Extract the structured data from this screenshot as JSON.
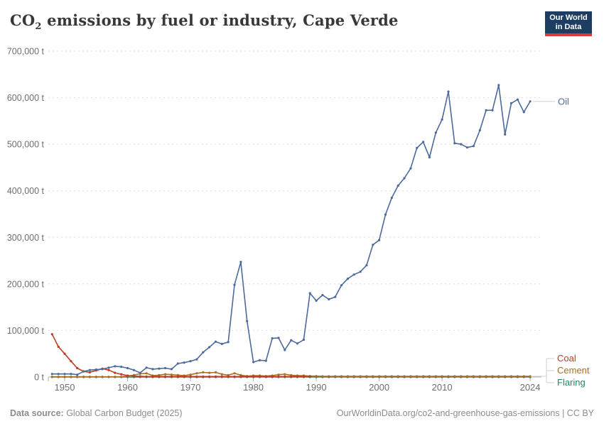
{
  "header": {
    "title_co": "CO",
    "title_sub": "2",
    "title_rest": " emissions by fuel or industry, Cape Verde",
    "logo": {
      "line1": "Our World",
      "line2": "in Data"
    }
  },
  "footer": {
    "source_label": "Data source:",
    "source_value": " Global Carbon Budget (2025)",
    "attribution": "OurWorldinData.org/co2-and-greenhouse-gas-emissions | CC BY"
  },
  "colors": {
    "oil": "#4C6A9C",
    "coal": "#BC3D22",
    "cement": "#AC6E24",
    "flaring": "#2C8465",
    "grid": "#dedede",
    "axis": "#b3b3b3",
    "tick_text": "#6e6e6e",
    "connector": "#cfcfcf",
    "logo_bg": "#1d3d63",
    "logo_accent": "#d93a34"
  },
  "chart_data": {
    "type": "line",
    "title": "CO₂ emissions by fuel or industry, Cape Verde",
    "unit": "t",
    "xlabel": "",
    "ylabel": "",
    "ylim": [
      0,
      700000
    ],
    "xlim": [
      1948,
      2024
    ],
    "grid": "horizontal-dashed",
    "legend_position": "right-edge-line-labels",
    "x_ticks": [
      1950,
      1960,
      1970,
      1980,
      1990,
      2000,
      2010,
      2024
    ],
    "y_ticks": [
      {
        "value": 0,
        "label": "0 t"
      },
      {
        "value": 100000,
        "label": "100,000 t"
      },
      {
        "value": 200000,
        "label": "200,000 t"
      },
      {
        "value": 300000,
        "label": "300,000 t"
      },
      {
        "value": 400000,
        "label": "400,000 t"
      },
      {
        "value": 500000,
        "label": "500,000 t"
      },
      {
        "value": 600000,
        "label": "600,000 t"
      },
      {
        "value": 700000,
        "label": "700,000 t"
      }
    ],
    "x": [
      1948,
      1949,
      1950,
      1951,
      1952,
      1953,
      1954,
      1955,
      1956,
      1957,
      1958,
      1959,
      1960,
      1961,
      1962,
      1963,
      1964,
      1965,
      1966,
      1967,
      1968,
      1969,
      1970,
      1971,
      1972,
      1973,
      1974,
      1975,
      1976,
      1977,
      1978,
      1979,
      1980,
      1981,
      1982,
      1983,
      1984,
      1985,
      1986,
      1987,
      1988,
      1989,
      1990,
      1991,
      1992,
      1993,
      1994,
      1995,
      1996,
      1997,
      1998,
      1999,
      2000,
      2001,
      2002,
      2003,
      2004,
      2005,
      2006,
      2007,
      2008,
      2009,
      2010,
      2011,
      2012,
      2013,
      2014,
      2015,
      2016,
      2017,
      2018,
      2019,
      2020,
      2021,
      2022,
      2023,
      2024
    ],
    "series": [
      {
        "name": "Oil",
        "color": "#4C6A9C",
        "values": [
          6500,
          6500,
          6500,
          6500,
          5000,
          12000,
          15000,
          16000,
          17000,
          20000,
          23000,
          22000,
          19000,
          15000,
          9000,
          20000,
          17000,
          18000,
          19000,
          17000,
          29000,
          31000,
          34000,
          38000,
          53000,
          64000,
          76000,
          71000,
          75000,
          198000,
          247000,
          120000,
          32000,
          36000,
          35000,
          83000,
          84000,
          58000,
          79000,
          72000,
          80000,
          180000,
          164000,
          176000,
          167000,
          172000,
          197000,
          211000,
          220000,
          226000,
          240000,
          284000,
          294000,
          349000,
          385000,
          411000,
          427000,
          448000,
          492000,
          505000,
          472000,
          525000,
          553000,
          613000,
          502000,
          500000,
          493000,
          496000,
          530000,
          573000,
          573000,
          627000,
          521000,
          588000,
          596000,
          569000,
          592000
        ]
      },
      {
        "name": "Coal",
        "color": "#BC3D22",
        "values": [
          92000,
          65000,
          50000,
          34000,
          19000,
          12000,
          10000,
          14000,
          18000,
          15000,
          9000,
          6000,
          3000,
          2000,
          1500,
          1000,
          1000,
          1000,
          1000,
          1000,
          1000,
          1000,
          1000,
          1000,
          1000,
          1000,
          1000,
          1000,
          1000,
          1000,
          1000,
          1000,
          1000,
          1000,
          1000,
          1000,
          1000,
          1000,
          1000,
          1000,
          1000,
          1000,
          null,
          null,
          null,
          null,
          null,
          null,
          null,
          null,
          null,
          null,
          null,
          null,
          null,
          null,
          null,
          null,
          null,
          null,
          null,
          null,
          null,
          null,
          null,
          null,
          null,
          null,
          null,
          null,
          null,
          null,
          null,
          null,
          null,
          null,
          null
        ]
      },
      {
        "name": "Cement",
        "color": "#AC6E24",
        "values": [
          500,
          500,
          500,
          500,
          500,
          500,
          500,
          500,
          500,
          500,
          500,
          500,
          2000,
          4000,
          7000,
          8000,
          3000,
          4000,
          6000,
          5000,
          4000,
          3000,
          5000,
          8000,
          10000,
          9000,
          10000,
          6000,
          4000,
          8000,
          4000,
          2000,
          3000,
          3000,
          2000,
          3000,
          5000,
          6000,
          4000,
          3000,
          3000,
          2000,
          2000,
          1500,
          1500,
          1500,
          1500,
          1500,
          1500,
          1500,
          1500,
          1500,
          1500,
          1500,
          1500,
          1500,
          1500,
          1500,
          1500,
          1500,
          1500,
          1500,
          1500,
          1500,
          1500,
          1500,
          1500,
          1500,
          1500,
          1500,
          1500,
          1500,
          1500,
          1500,
          1500,
          1500,
          1500
        ]
      },
      {
        "name": "Flaring",
        "color": "#2C8465",
        "values": [
          0,
          0,
          0,
          0,
          0,
          0,
          0,
          0,
          0,
          0,
          0,
          0,
          0,
          0,
          0,
          0,
          0,
          0,
          0,
          0,
          0,
          0,
          0,
          0,
          0,
          0,
          0,
          0,
          0,
          0,
          0,
          0,
          0,
          0,
          0,
          0,
          0,
          0,
          0,
          0,
          0,
          0,
          0,
          0,
          0,
          0,
          0,
          0,
          0,
          0,
          0,
          0,
          0,
          0,
          0,
          0,
          0,
          0,
          0,
          0,
          0,
          0,
          0,
          0,
          0,
          0,
          0,
          0,
          0,
          0,
          0,
          0,
          0,
          0,
          0,
          0,
          0
        ]
      }
    ]
  }
}
